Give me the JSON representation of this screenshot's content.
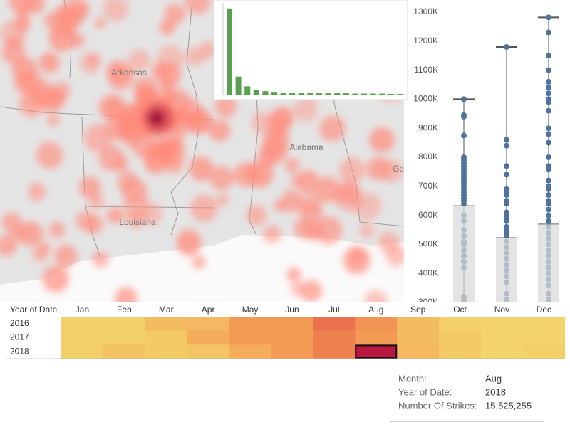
{
  "map": {
    "labels": [
      "Arkansas",
      "Alabama",
      "Louisiana",
      "Ge"
    ]
  },
  "chart_data": [
    {
      "type": "bar",
      "color": "#59a14f",
      "categories": [
        null,
        null,
        null,
        null,
        null,
        null,
        null,
        null,
        null,
        null,
        null,
        null,
        null,
        null,
        null,
        null,
        null,
        null,
        null,
        null
      ],
      "values": [
        125,
        26,
        12,
        7,
        5,
        4,
        3,
        3,
        2.5,
        2.5,
        2,
        2,
        2,
        2,
        1.5,
        1.5,
        1.5,
        1.5,
        1,
        1
      ],
      "ylim": [
        0,
        133
      ]
    },
    {
      "type": "box",
      "bar_color": "#d9d9d9",
      "point_color": "#4e73a0",
      "line_color": "#555555",
      "values": [
        633000,
        523000,
        570000
      ],
      "max": [
        1000000,
        1180000,
        1282000
      ],
      "points": [
        [
          1000000,
          945000,
          940000,
          875000,
          800000,
          790000,
          780000,
          770000,
          760000,
          750000,
          740000,
          730000,
          720000,
          710000,
          700000,
          690000,
          680000,
          670000,
          660000,
          650000,
          640000,
          600000,
          580000,
          550000,
          530000,
          510000,
          500000,
          480000,
          460000,
          440000,
          420000,
          320000,
          310000
        ],
        [
          1180000,
          860000,
          840000,
          770000,
          740000,
          690000,
          680000,
          670000,
          650000,
          640000,
          610000,
          600000,
          590000,
          580000,
          560000,
          550000,
          540000,
          530000,
          510000,
          490000,
          470000,
          450000,
          430000,
          410000,
          390000,
          370000,
          330000,
          310000
        ],
        [
          1282000,
          1230000,
          1150000,
          1100000,
          1060000,
          1040000,
          1020000,
          1000000,
          990000,
          960000,
          900000,
          880000,
          850000,
          800000,
          770000,
          760000,
          720000,
          700000,
          690000,
          670000,
          650000,
          640000,
          620000,
          600000,
          580000,
          560000,
          540000,
          520000,
          500000,
          480000,
          460000,
          440000,
          420000,
          400000,
          380000,
          360000,
          330000,
          310000
        ]
      ],
      "ylim": [
        300000,
        1340000
      ],
      "yticks": [
        {
          "value": 300000,
          "label": "300K"
        },
        {
          "value": 400000,
          "label": "400K"
        },
        {
          "value": 500000,
          "label": "500K"
        },
        {
          "value": 600000,
          "label": "600K"
        },
        {
          "value": 700000,
          "label": "700K"
        },
        {
          "value": 800000,
          "label": "800K"
        },
        {
          "value": 900000,
          "label": "900K"
        },
        {
          "value": 1000000,
          "label": "1000K"
        },
        {
          "value": 1100000,
          "label": "1100K"
        },
        {
          "value": 1200000,
          "label": "1200K"
        },
        {
          "value": 1300000,
          "label": "1300K"
        }
      ]
    },
    {
      "type": "heatmap",
      "row_header": "Year of Date",
      "categories": [
        "Jan",
        "Feb",
        "Mar",
        "Apr",
        "May",
        "Jun",
        "Jul",
        "Aug",
        "Sep",
        "Oct",
        "Nov",
        "Dec"
      ],
      "rows": [
        "2016",
        "2017",
        "2018"
      ],
      "values": [
        [
          2000000,
          2000000,
          4000000,
          4500000,
          7000000,
          7000000,
          10000000,
          7500000,
          4000000,
          2000000,
          1500000,
          1500000
        ],
        [
          2000000,
          2000000,
          2500000,
          5500000,
          7000000,
          7000000,
          9000000,
          7000000,
          4000000,
          2500000,
          1500000,
          1500000
        ],
        [
          2000000,
          3500000,
          2500000,
          3000000,
          5500000,
          7000000,
          9000000,
          15525255,
          4500000,
          2500000,
          1500000,
          1800000
        ]
      ],
      "colors": [
        "#f3d46b",
        "#f5b25d",
        "#f2874f",
        "#e0584c",
        "#b8173f"
      ]
    }
  ],
  "tooltip": {
    "rows": [
      [
        "Month:",
        "Aug"
      ],
      [
        "Year of Date:",
        "2018"
      ],
      [
        "Number Of Strikes:",
        "15,525,255"
      ]
    ]
  }
}
